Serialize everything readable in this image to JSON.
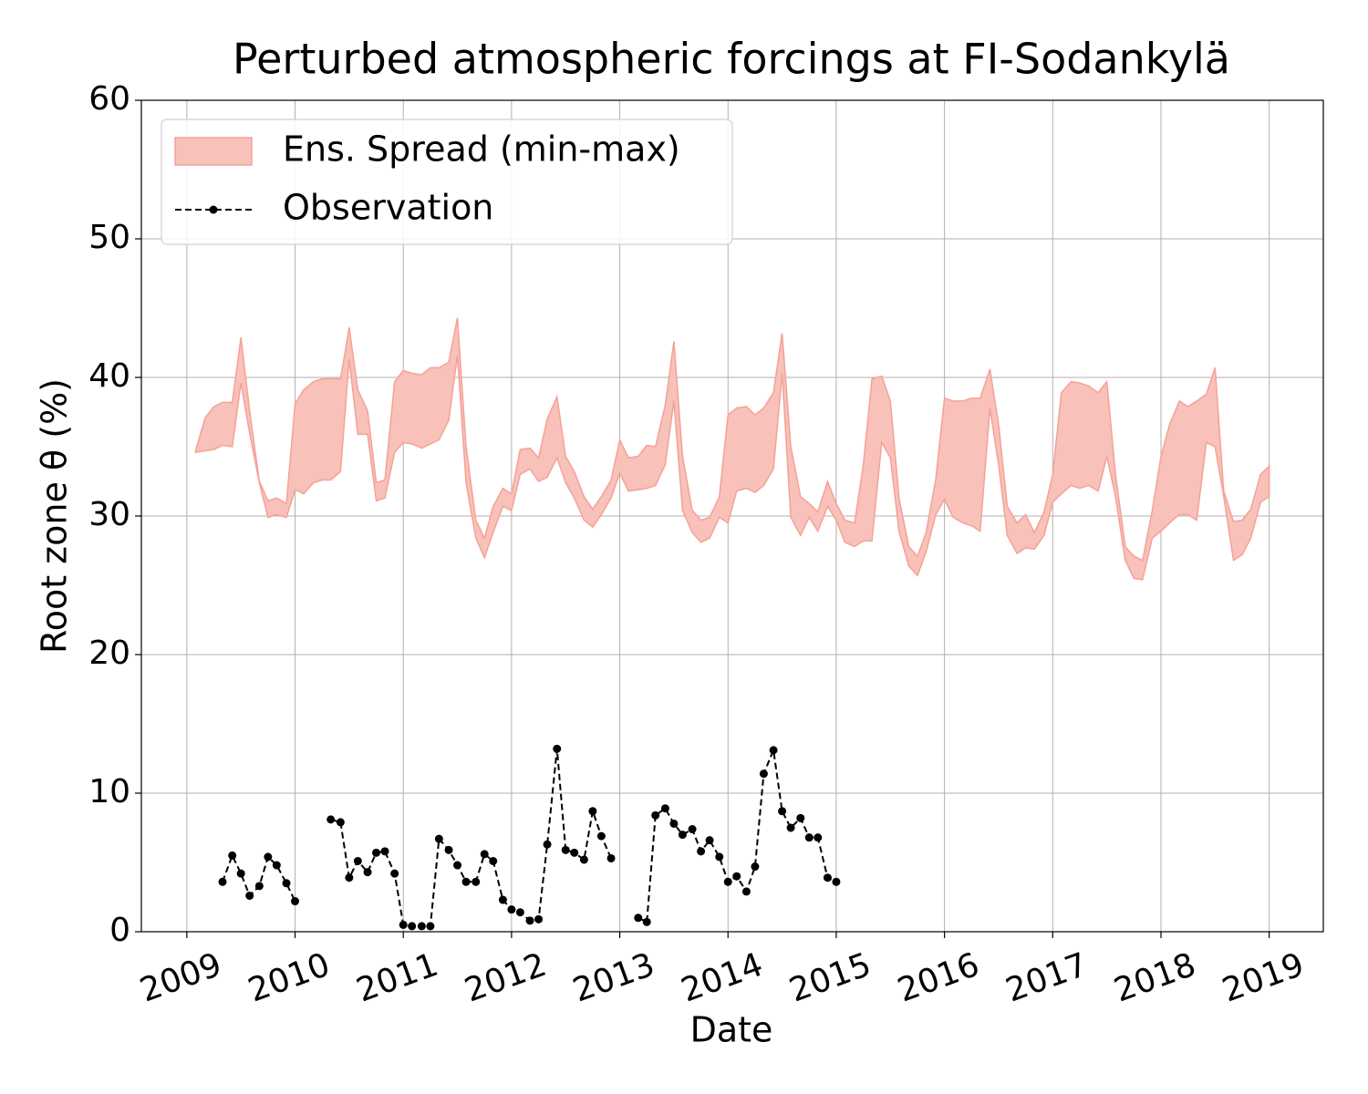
{
  "chart_data": {
    "type": "band-line",
    "title": "Perturbed atmospheric forcings at FI-Sodankylä",
    "x_label": "Date",
    "y_label": "Root zone θ  (%)",
    "xlim": [
      2008.58,
      2019.5
    ],
    "xticks": [
      2009,
      2010,
      2011,
      2012,
      2013,
      2014,
      2015,
      2016,
      2017,
      2018,
      2019
    ],
    "ylim": [
      0,
      60
    ],
    "yticks": [
      0,
      10,
      20,
      30,
      40,
      50,
      60
    ],
    "grid": true,
    "legend": "upper left",
    "series": [
      {
        "name": "Ens. Spread (min-max)",
        "type": "band",
        "color": "#f8c1ba",
        "edge_color": "#f4a296",
        "x": [
          2009.08,
          2009.17,
          2009.25,
          2009.33,
          2009.42,
          2009.5,
          2009.58,
          2009.67,
          2009.75,
          2009.83,
          2009.92,
          2010,
          2010.08,
          2010.17,
          2010.25,
          2010.33,
          2010.42,
          2010.5,
          2010.58,
          2010.67,
          2010.75,
          2010.83,
          2010.92,
          2011,
          2011.08,
          2011.17,
          2011.25,
          2011.33,
          2011.42,
          2011.5,
          2011.58,
          2011.67,
          2011.75,
          2011.83,
          2011.92,
          2012,
          2012.08,
          2012.17,
          2012.25,
          2012.33,
          2012.42,
          2012.5,
          2012.58,
          2012.67,
          2012.75,
          2012.83,
          2012.92,
          2013,
          2013.08,
          2013.17,
          2013.25,
          2013.33,
          2013.42,
          2013.5,
          2013.58,
          2013.67,
          2013.75,
          2013.83,
          2013.92,
          2014,
          2014.08,
          2014.17,
          2014.25,
          2014.33,
          2014.42,
          2014.5,
          2014.58,
          2014.67,
          2014.75,
          2014.83,
          2014.92,
          2015,
          2015.08,
          2015.17,
          2015.25,
          2015.33,
          2015.42,
          2015.5,
          2015.58,
          2015.67,
          2015.75,
          2015.83,
          2015.92,
          2016,
          2016.08,
          2016.17,
          2016.25,
          2016.33,
          2016.42,
          2016.5,
          2016.58,
          2016.67,
          2016.75,
          2016.83,
          2016.92,
          2017,
          2017.08,
          2017.17,
          2017.25,
          2017.33,
          2017.42,
          2017.5,
          2017.58,
          2017.67,
          2017.75,
          2017.83,
          2017.92,
          2018,
          2018.08,
          2018.17,
          2018.25,
          2018.33,
          2018.42,
          2018.5,
          2018.58,
          2018.67,
          2018.75,
          2018.83,
          2018.92,
          2019
        ],
        "upper": [
          34.7,
          37.1,
          37.9,
          38.2,
          38.2,
          42.9,
          37.6,
          32.5,
          31.1,
          31.3,
          30.9,
          38.1,
          39.1,
          39.7,
          39.9,
          39.9,
          39.9,
          43.6,
          39.1,
          37.6,
          32.4,
          32.6,
          39.7,
          40.5,
          40.3,
          40.2,
          40.7,
          40.7,
          41.1,
          44.3,
          35.0,
          29.7,
          28.4,
          30.7,
          32.0,
          31.6,
          34.8,
          34.9,
          34.2,
          37.0,
          38.6,
          34.3,
          33.2,
          31.4,
          30.5,
          31.4,
          32.6,
          35.5,
          34.2,
          34.3,
          35.1,
          35.0,
          38.0,
          42.6,
          34.3,
          30.4,
          29.7,
          29.9,
          31.4,
          37.3,
          37.8,
          37.9,
          37.3,
          37.8,
          38.9,
          43.2,
          35.0,
          31.4,
          30.9,
          30.3,
          32.5,
          30.9,
          29.7,
          29.5,
          33.7,
          39.9,
          40.1,
          38.3,
          31.3,
          27.8,
          27.1,
          28.8,
          32.7,
          38.5,
          38.3,
          38.3,
          38.5,
          38.5,
          40.6,
          36.6,
          30.7,
          29.5,
          30.1,
          28.8,
          30.3,
          33.0,
          38.9,
          39.7,
          39.6,
          39.4,
          38.9,
          39.7,
          33.0,
          27.8,
          27.1,
          26.8,
          30.4,
          34.3,
          36.6,
          38.3,
          37.9,
          38.3,
          38.8,
          40.7,
          31.8,
          29.6,
          29.7,
          30.5,
          33.0,
          33.6
        ],
        "lower": [
          34.6,
          34.7,
          34.8,
          35.1,
          35.0,
          39.6,
          36.0,
          32.4,
          29.9,
          30.1,
          29.9,
          31.9,
          31.6,
          32.4,
          32.6,
          32.6,
          33.2,
          41.3,
          35.9,
          35.9,
          31.1,
          31.3,
          34.6,
          35.3,
          35.2,
          34.9,
          35.2,
          35.5,
          36.9,
          41.6,
          32.4,
          28.4,
          27.0,
          28.8,
          30.7,
          30.4,
          33.0,
          33.4,
          32.5,
          32.8,
          34.2,
          32.4,
          31.3,
          29.7,
          29.2,
          30.1,
          31.3,
          33.1,
          31.8,
          31.9,
          32.0,
          32.2,
          33.7,
          38.3,
          30.4,
          28.8,
          28.1,
          28.4,
          29.9,
          29.5,
          31.8,
          32.0,
          31.7,
          32.2,
          33.4,
          40.3,
          29.9,
          28.6,
          29.9,
          28.9,
          30.7,
          29.7,
          28.1,
          27.8,
          28.2,
          28.2,
          35.3,
          34.2,
          28.9,
          26.4,
          25.7,
          27.4,
          30.1,
          31.2,
          29.9,
          29.5,
          29.3,
          28.9,
          37.8,
          33.7,
          28.6,
          27.3,
          27.7,
          27.6,
          28.6,
          31.0,
          31.6,
          32.2,
          32.0,
          32.2,
          31.8,
          34.3,
          31.4,
          26.8,
          25.5,
          25.4,
          28.4,
          28.9,
          29.5,
          30.1,
          30.1,
          29.7,
          35.3,
          35.0,
          31.4,
          26.8,
          27.2,
          28.4,
          31.0,
          31.4
        ]
      },
      {
        "name": "Observation",
        "type": "line",
        "color": "#000000",
        "dashed": true,
        "marker": true,
        "x": [
          2009.33,
          2009.42,
          2009.5,
          2009.58,
          2009.67,
          2009.75,
          2009.83,
          2009.92,
          2010,
          2010.08,
          2010.17,
          2010.25,
          2010.33,
          2010.42,
          2010.5,
          2010.58,
          2010.67,
          2010.75,
          2010.83,
          2010.92,
          2011,
          2011.08,
          2011.17,
          2011.25,
          2011.33,
          2011.42,
          2011.5,
          2011.58,
          2011.67,
          2011.75,
          2011.83,
          2011.92,
          2012,
          2012.08,
          2012.17,
          2012.25,
          2012.33,
          2012.42,
          2012.5,
          2012.58,
          2012.67,
          2012.75,
          2012.83,
          2012.92,
          2013,
          2013.08,
          2013.17,
          2013.25,
          2013.33,
          2013.42,
          2013.5,
          2013.58,
          2013.67,
          2013.75,
          2013.83,
          2013.92,
          2014,
          2014.08,
          2014.17,
          2014.25,
          2014.33,
          2014.42,
          2014.5,
          2014.58,
          2014.67,
          2014.75,
          2014.83,
          2014.92,
          2015
        ],
        "values": [
          3.6,
          5.5,
          4.2,
          2.6,
          3.3,
          5.4,
          4.8,
          3.5,
          2.2,
          null,
          null,
          null,
          8.1,
          7.9,
          3.9,
          5.1,
          4.3,
          5.7,
          5.8,
          4.2,
          0.5,
          0.4,
          0.4,
          0.4,
          6.7,
          5.9,
          4.8,
          3.6,
          3.6,
          5.6,
          5.1,
          2.3,
          1.6,
          1.4,
          0.8,
          0.9,
          6.3,
          13.2,
          5.9,
          5.7,
          5.2,
          8.7,
          6.9,
          5.3,
          null,
          null,
          1.0,
          0.7,
          8.4,
          8.9,
          7.8,
          7.0,
          7.4,
          5.8,
          6.6,
          5.4,
          3.6,
          4.0,
          2.9,
          4.7,
          11.4,
          13.1,
          8.7,
          7.5,
          8.2,
          6.8,
          6.8,
          3.9,
          3.6
        ]
      }
    ]
  }
}
